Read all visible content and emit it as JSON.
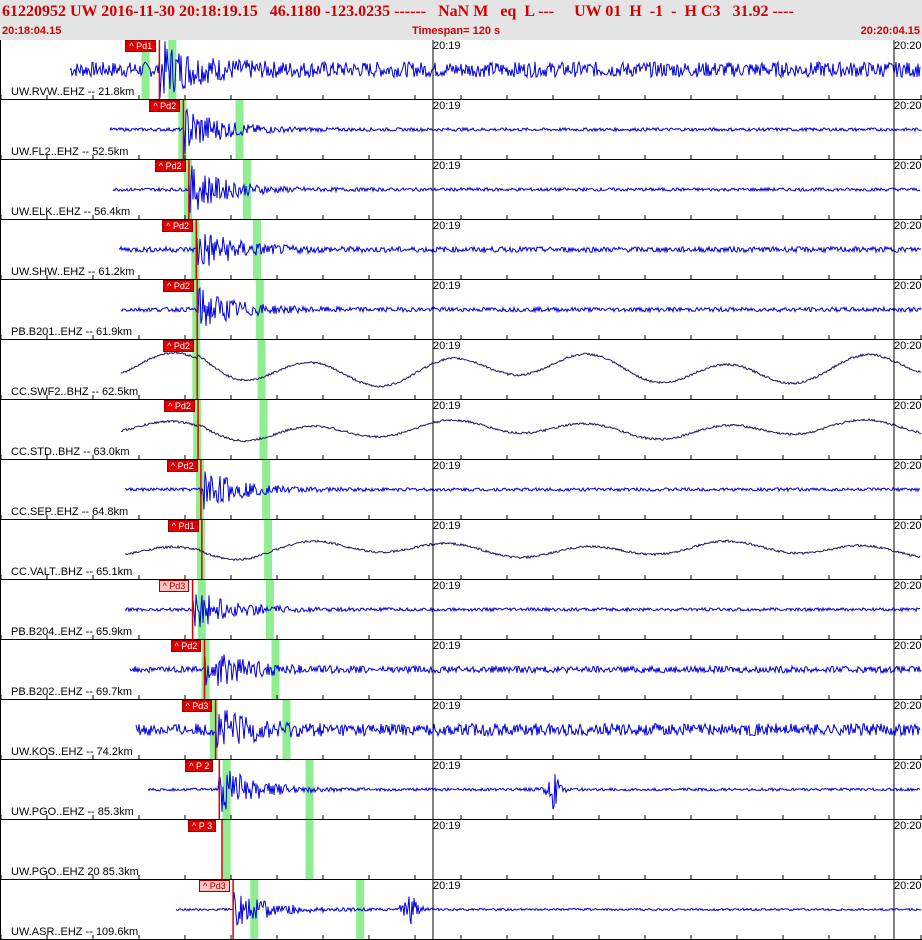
{
  "header": {
    "title": "61220952 UW 2016-11-30 20:18:19.15   46.1180 -123.0235 ------   NaN M   eq  L ---     UW 01  H  -1  -  H C3   31.92 ----",
    "start_time": "20:18:04.15",
    "timespan": "Timespan= 120 s",
    "end_time": "20:20:04.15"
  },
  "tick_labels": [
    "20:19",
    "20:20"
  ],
  "colors": {
    "trace_short_period": "#0000e0",
    "trace_broadband": "#1a1a60",
    "pick_marker": "#e00000",
    "pick_marker_light": "#ffc0c0",
    "window_band": "#90ee90",
    "header_text": "#d40000"
  },
  "traces": [
    {
      "label": "UW.RVW..EHZ -- 21.8km",
      "pick": "Pd1",
      "kind": "sp",
      "pick_pos": 0.172,
      "band1": 0.157,
      "band2": 0.186,
      "start": 0.075,
      "amp": 0.28,
      "burst": 0.9
    },
    {
      "label": "UW.FL2..EHZ -- 52.5km",
      "pick": "Pd2",
      "kind": "sp",
      "pick_pos": 0.198,
      "band1": 0.197,
      "band2": 0.259,
      "start": 0.118,
      "amp": 0.06,
      "burst": 0.9
    },
    {
      "label": "UW.ELK..EHZ -- 56.4km",
      "pick": "Pd2",
      "kind": "sp",
      "pick_pos": 0.204,
      "band1": 0.203,
      "band2": 0.267,
      "start": 0.122,
      "amp": 0.06,
      "burst": 0.9
    },
    {
      "label": "UW.SHW..EHZ -- 61.2km",
      "pick": "Pd2",
      "kind": "sp",
      "pick_pos": 0.212,
      "band1": 0.211,
      "band2": 0.278,
      "start": 0.128,
      "amp": 0.1,
      "burst": 0.85
    },
    {
      "label": "PB.B201..EHZ -- 61.9km",
      "pick": "Pd2",
      "kind": "sp",
      "pick_pos": 0.213,
      "band1": 0.212,
      "band2": 0.281,
      "start": 0.13,
      "amp": 0.08,
      "burst": 0.8
    },
    {
      "label": "CC.SWF2..BHZ -- 62.5km",
      "pick": "Pd2",
      "kind": "bb",
      "pick_pos": 0.213,
      "band1": 0.212,
      "band2": 0.283,
      "start": 0.13,
      "amp": 0.6,
      "burst": 0.4
    },
    {
      "label": "CC.STD..BHZ -- 63.0km",
      "pick": "Pd2",
      "kind": "bb",
      "pick_pos": 0.214,
      "band1": 0.213,
      "band2": 0.285,
      "start": 0.13,
      "amp": 0.35,
      "burst": 0.4
    },
    {
      "label": "CC.SEP..EHZ -- 64.8km",
      "pick": "Pd2",
      "kind": "sp",
      "pick_pos": 0.217,
      "band1": 0.216,
      "band2": 0.288,
      "start": 0.135,
      "amp": 0.06,
      "burst": 0.85
    },
    {
      "label": "CC.VALT..BHZ -- 65.1km",
      "pick": "Pd1",
      "kind": "bb",
      "pick_pos": 0.218,
      "band1": 0.217,
      "band2": 0.29,
      "start": 0.135,
      "amp": 0.3,
      "burst": 0.45
    },
    {
      "label": "PB.B204..EHZ -- 65.9km",
      "pick": "Pd3",
      "kind": "sp",
      "pick_pos": 0.208,
      "band1": 0.218,
      "band2": 0.292,
      "start": 0.135,
      "amp": 0.06,
      "burst": 0.8,
      "light": true
    },
    {
      "label": "PB.B202..EHZ -- 69.7km",
      "pick": "Pd2",
      "kind": "sp",
      "pick_pos": 0.221,
      "band1": 0.222,
      "band2": 0.298,
      "start": 0.14,
      "amp": 0.12,
      "burst": 0.8
    },
    {
      "label": "UW.KOS..EHZ -- 74.2km",
      "pick": "Pd3",
      "kind": "sp",
      "pick_pos": 0.233,
      "band1": 0.231,
      "band2": 0.31,
      "start": 0.147,
      "amp": 0.22,
      "burst": 0.75
    },
    {
      "label": "UW.PGO..EHZ -- 85.3km",
      "pick": "P 2",
      "kind": "sp",
      "pick_pos": 0.237,
      "band1": 0.245,
      "band2": 0.335,
      "start": 0.16,
      "amp": 0.05,
      "burst": 0.9,
      "extra": 0.6
    },
    {
      "label": "UW.PGO..EHZ 20 85.3km",
      "pick": "P 3",
      "kind": "flat",
      "pick_pos": 0.24,
      "band1": 0.245,
      "band2": 0.335,
      "start": 0.16,
      "amp": 0.0,
      "burst": 0.0
    },
    {
      "label": "UW.ASR..EHZ -- 109.6km",
      "pick": "Pd3",
      "kind": "sp",
      "pick_pos": 0.252,
      "band1": 0.275,
      "band2": 0.39,
      "start": 0.19,
      "amp": 0.04,
      "burst": 0.7,
      "extra": 0.445,
      "light": true
    }
  ]
}
